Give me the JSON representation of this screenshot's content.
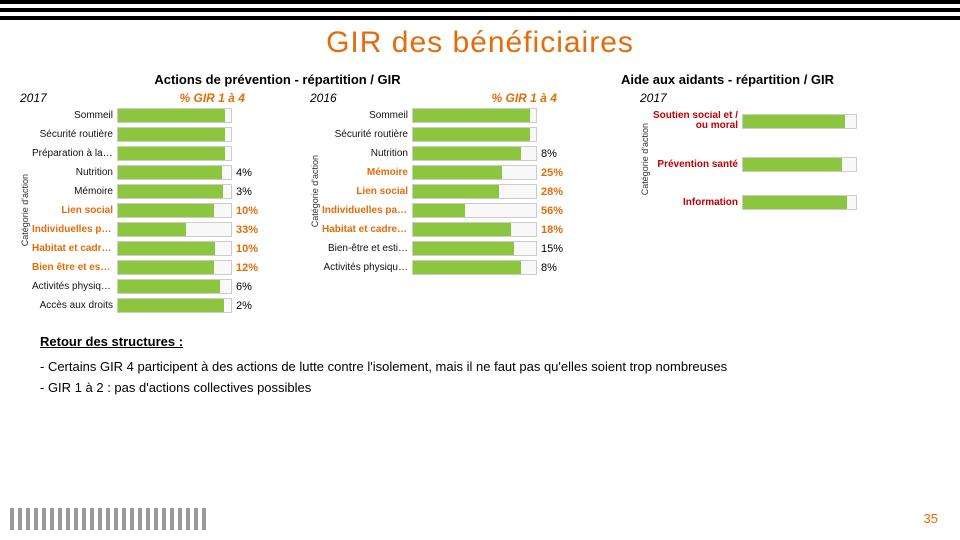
{
  "colors": {
    "accent": "#e46c0a",
    "bar": "#8cc63f",
    "track_border": "#cccccc",
    "track_bg": "#f8f8f8",
    "black": "#000000"
  },
  "title": "GIR des bénéficiaires",
  "subtitle_left": "Actions de prévention - répartition / GIR",
  "subtitle_right": "Aide aux aidants - répartition / GIR",
  "pct_header": "% GIR 1 à 4",
  "panel1": {
    "year": "2017",
    "axis_label": "Catégorie d'action",
    "cat_width": 85,
    "track_width": 115,
    "categories": [
      {
        "label": "Sommeil",
        "value": 95,
        "pct": "",
        "bold": false
      },
      {
        "label": "Sécurité routière",
        "value": 95,
        "pct": "",
        "bold": false
      },
      {
        "label": "Préparation à la r…",
        "value": 95,
        "pct": "",
        "bold": false
      },
      {
        "label": "Nutrition",
        "value": 92,
        "pct": "4%",
        "bold": false,
        "val_bold": true
      },
      {
        "label": "Mémoire",
        "value": 93,
        "pct": "3%",
        "bold": false,
        "val_bold": true
      },
      {
        "label": "Lien social",
        "value": 85,
        "pct": "10%",
        "bold": true,
        "val_bold": true,
        "color": "#e46c0a"
      },
      {
        "label": "Individuelles par …",
        "value": 60,
        "pct": "33%",
        "bold": true,
        "val_bold": true,
        "color": "#e46c0a"
      },
      {
        "label": "Habitat et cadre d…",
        "value": 86,
        "pct": "10%",
        "bold": true,
        "val_bold": true,
        "color": "#e46c0a"
      },
      {
        "label": "Bien être et esti…",
        "value": 85,
        "pct": "12%",
        "bold": true,
        "val_bold": true,
        "color": "#e46c0a"
      },
      {
        "label": "Activités physiqu…",
        "value": 90,
        "pct": "6%",
        "bold": false,
        "val_bold": true
      },
      {
        "label": "Accès aux droits",
        "value": 94,
        "pct": "2%",
        "bold": false,
        "val_bold": true
      }
    ]
  },
  "panel2": {
    "year": "2016",
    "axis_label": "Catégorie d'action",
    "cat_width": 90,
    "track_width": 125,
    "categories": [
      {
        "label": "Sommeil",
        "value": 95,
        "pct": "",
        "bold": false
      },
      {
        "label": "Sécurité routière",
        "value": 95,
        "pct": "",
        "bold": false
      },
      {
        "label": "Nutrition",
        "value": 88,
        "pct": "8%",
        "bold": false
      },
      {
        "label": "Mémoire",
        "value": 72,
        "pct": "25%",
        "bold": true,
        "color": "#e46c0a",
        "val_bold": true
      },
      {
        "label": "Lien social",
        "value": 70,
        "pct": "28%",
        "bold": true,
        "color": "#e46c0a",
        "val_bold": true
      },
      {
        "label": "Individuelles par …",
        "value": 42,
        "pct": "56%",
        "bold": true,
        "color": "#e46c0a",
        "val_bold": true
      },
      {
        "label": "Habitat et cadre d…",
        "value": 80,
        "pct": "18%",
        "bold": true,
        "color": "#e46c0a",
        "val_bold": true
      },
      {
        "label": "Bien-être et esti…",
        "value": 82,
        "pct": "15%",
        "bold": false
      },
      {
        "label": "Activités physiqu…",
        "value": 88,
        "pct": "8%",
        "bold": false
      }
    ]
  },
  "panel3": {
    "year": "2017",
    "axis_label": "Catégorie d'action",
    "cat_width": 90,
    "track_width": 115,
    "categories": [
      {
        "label": "Soutien social et / ou moral",
        "value": 90,
        "pct": "",
        "color": "#c00000",
        "bold": true,
        "wrap": true
      },
      {
        "label": "",
        "value": 0,
        "pct": "",
        "spacer": true
      },
      {
        "label": "Prévention santé",
        "value": 88,
        "pct": "",
        "color": "#c00000",
        "bold": true
      },
      {
        "label": "",
        "value": 0,
        "pct": "",
        "spacer": true
      },
      {
        "label": "Information",
        "value": 92,
        "pct": "",
        "color": "#c00000",
        "bold": true
      }
    ]
  },
  "retour_title": "Retour des structures :",
  "retour_items": [
    "-   Certains GIR 4 participent à des actions de lutte contre l'isolement, mais il ne faut pas qu'elles soient trop nombreuses",
    "-   GIR 1 à 2 : pas d'actions collectives possibles"
  ],
  "page_number": "35"
}
